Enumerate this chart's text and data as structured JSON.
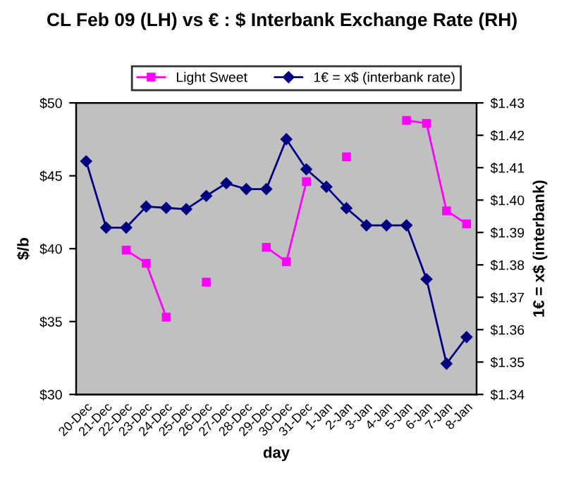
{
  "chart_data": {
    "type": "line",
    "title": "CL Feb 09 (LH) vs € : $ Interbank Exchange Rate (RH)",
    "xlabel": "day",
    "ylabel": "$/b",
    "y2label": "1€ = x$ (interbank)",
    "categories": [
      "20-Dec",
      "21-Dec",
      "22-Dec",
      "23-Dec",
      "24-Dec",
      "25-Dec",
      "26-Dec",
      "27-Dec",
      "28-Dec",
      "29-Dec",
      "30-Dec",
      "31-Dec",
      "1-Jan",
      "2-Jan",
      "3-Jan",
      "4-Jan",
      "5-Jan",
      "6-Jan",
      "7-Jan",
      "8-Jan"
    ],
    "series": [
      {
        "name": "Light Sweet",
        "color": "#ff00ff",
        "marker": "square",
        "values": [
          null,
          null,
          39.9,
          39.0,
          35.3,
          null,
          37.7,
          null,
          null,
          40.1,
          39.1,
          44.6,
          null,
          46.3,
          null,
          null,
          48.8,
          48.6,
          42.6,
          41.7
        ]
      },
      {
        "name": "1€ = x$ (interbank rate)",
        "color": "#000080",
        "marker": "diamond",
        "axis": "y2",
        "values": [
          1.412,
          1.3915,
          1.3915,
          1.398,
          1.3976,
          1.3972,
          1.4013,
          1.4052,
          1.4034,
          1.4034,
          1.4188,
          1.4095,
          1.4041,
          1.3975,
          1.3922,
          1.3922,
          1.3922,
          1.3756,
          1.3495,
          1.3577
        ]
      }
    ],
    "ylim": [
      30,
      50
    ],
    "yticks": [
      {
        "value": 30,
        "label": "$30"
      },
      {
        "value": 35,
        "label": "$35"
      },
      {
        "value": 40,
        "label": "$40"
      },
      {
        "value": 45,
        "label": "$45"
      },
      {
        "value": 50,
        "label": "$50"
      }
    ],
    "y2lim": [
      1.34,
      1.43
    ],
    "y2ticks": [
      {
        "value": 1.34,
        "label": "$1.34"
      },
      {
        "value": 1.35,
        "label": "$1.35"
      },
      {
        "value": 1.36,
        "label": "$1.36"
      },
      {
        "value": 1.37,
        "label": "$1.37"
      },
      {
        "value": 1.38,
        "label": "$1.38"
      },
      {
        "value": 1.39,
        "label": "$1.39"
      },
      {
        "value": 1.4,
        "label": "$1.40"
      },
      {
        "value": 1.41,
        "label": "$1.41"
      },
      {
        "value": 1.42,
        "label": "$1.42"
      },
      {
        "value": 1.43,
        "label": "$1.43"
      }
    ],
    "grid": false,
    "legend": "top"
  }
}
